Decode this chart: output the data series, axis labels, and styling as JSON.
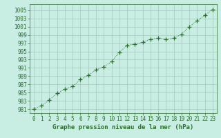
{
  "x": [
    0,
    1,
    2,
    3,
    4,
    5,
    6,
    7,
    8,
    9,
    10,
    11,
    12,
    13,
    14,
    15,
    16,
    17,
    18,
    19,
    20,
    21,
    22,
    23
  ],
  "y": [
    981.0,
    981.8,
    983.2,
    984.8,
    985.8,
    986.5,
    988.2,
    989.2,
    990.5,
    991.3,
    992.5,
    994.8,
    996.5,
    996.8,
    997.2,
    998.0,
    998.2,
    998.0,
    998.2,
    999.2,
    1001.0,
    1002.5,
    1003.8,
    1005.2
  ],
  "line_color": "#2d6e2d",
  "marker": "+",
  "marker_size": 4,
  "marker_color": "#2d6e2d",
  "bg_color": "#c8eee4",
  "grid_color": "#a0c8b8",
  "xlabel": "Graphe pression niveau de la mer (hPa)",
  "xlabel_fontsize": 6.5,
  "xlabel_color": "#2d6e2d",
  "tick_color": "#2d6e2d",
  "tick_fontsize": 5.5,
  "ylabel_ticks": [
    981,
    983,
    985,
    987,
    989,
    991,
    993,
    995,
    997,
    999,
    1001,
    1003,
    1005
  ],
  "xlim": [
    -0.5,
    23.5
  ],
  "ylim": [
    980.0,
    1006.5
  ],
  "xticks": [
    0,
    1,
    2,
    3,
    4,
    5,
    6,
    7,
    8,
    9,
    10,
    11,
    12,
    13,
    14,
    15,
    16,
    17,
    18,
    19,
    20,
    21,
    22,
    23
  ]
}
